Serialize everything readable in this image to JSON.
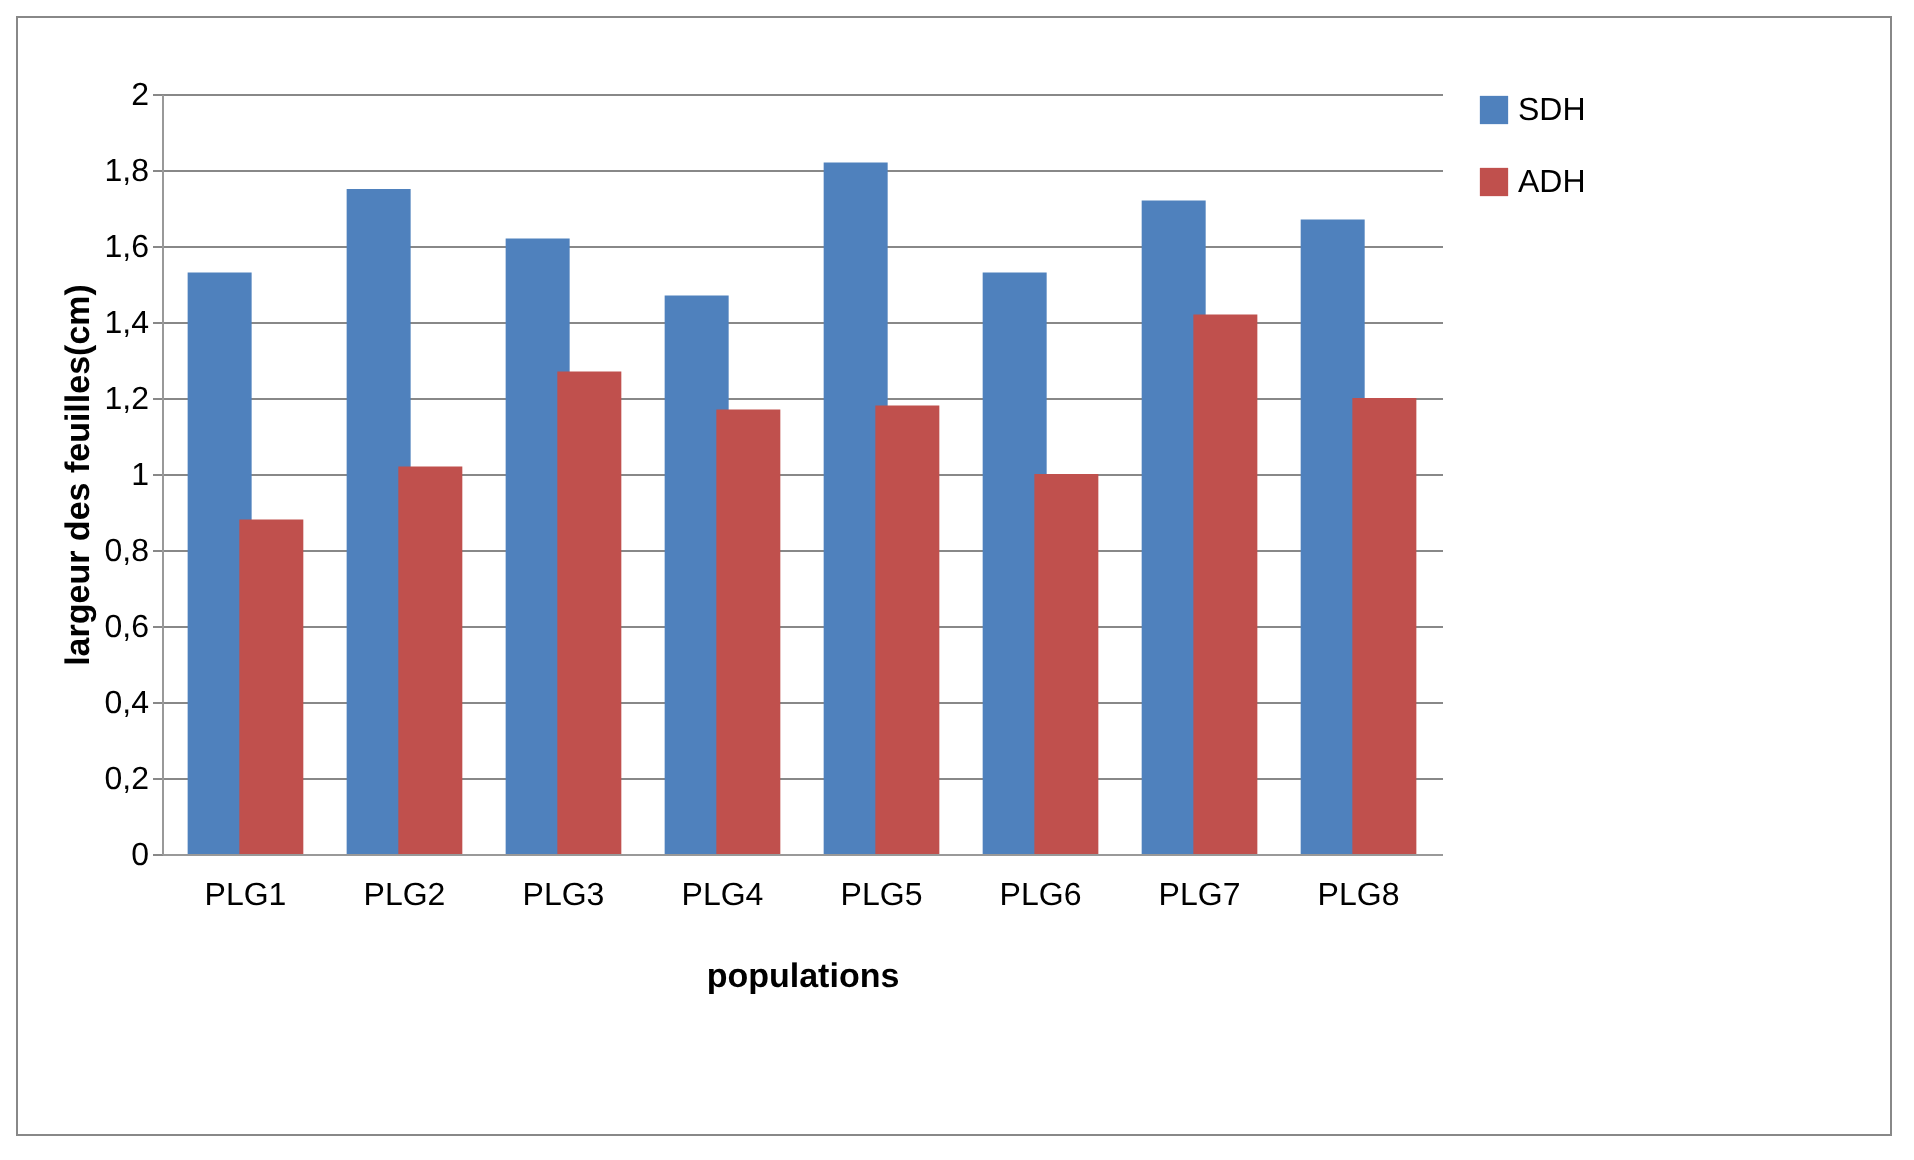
{
  "chart_data": {
    "type": "bar",
    "xlabel": "populations",
    "ylabel": "largeur des feuilles(cm)",
    "categories": [
      "PLG1",
      "PLG2",
      "PLG3",
      "PLG4",
      "PLG5",
      "PLG6",
      "PLG7",
      "PLG8"
    ],
    "series": [
      {
        "name": "SDH",
        "color": "#4f81bd",
        "values": [
          1.53,
          1.75,
          1.62,
          1.47,
          1.82,
          1.53,
          1.72,
          1.67
        ]
      },
      {
        "name": "ADH",
        "color": "#c0504d",
        "values": [
          0.88,
          1.02,
          1.27,
          1.17,
          1.18,
          1.0,
          1.42,
          1.2
        ]
      }
    ],
    "ylim": [
      0,
      2
    ],
    "yticks": [
      {
        "value": 0,
        "label": "0"
      },
      {
        "value": 0.2,
        "label": "0,2"
      },
      {
        "value": 0.4,
        "label": "0,4"
      },
      {
        "value": 0.6,
        "label": "0,6"
      },
      {
        "value": 0.8,
        "label": "0,8"
      },
      {
        "value": 1,
        "label": "1"
      },
      {
        "value": 1.2,
        "label": "1,2"
      },
      {
        "value": 1.4,
        "label": "1,4"
      },
      {
        "value": 1.6,
        "label": "1,6"
      },
      {
        "value": 1.8,
        "label": "1,8"
      },
      {
        "value": 2,
        "label": "2"
      }
    ],
    "grid": "y",
    "legend": "right"
  }
}
